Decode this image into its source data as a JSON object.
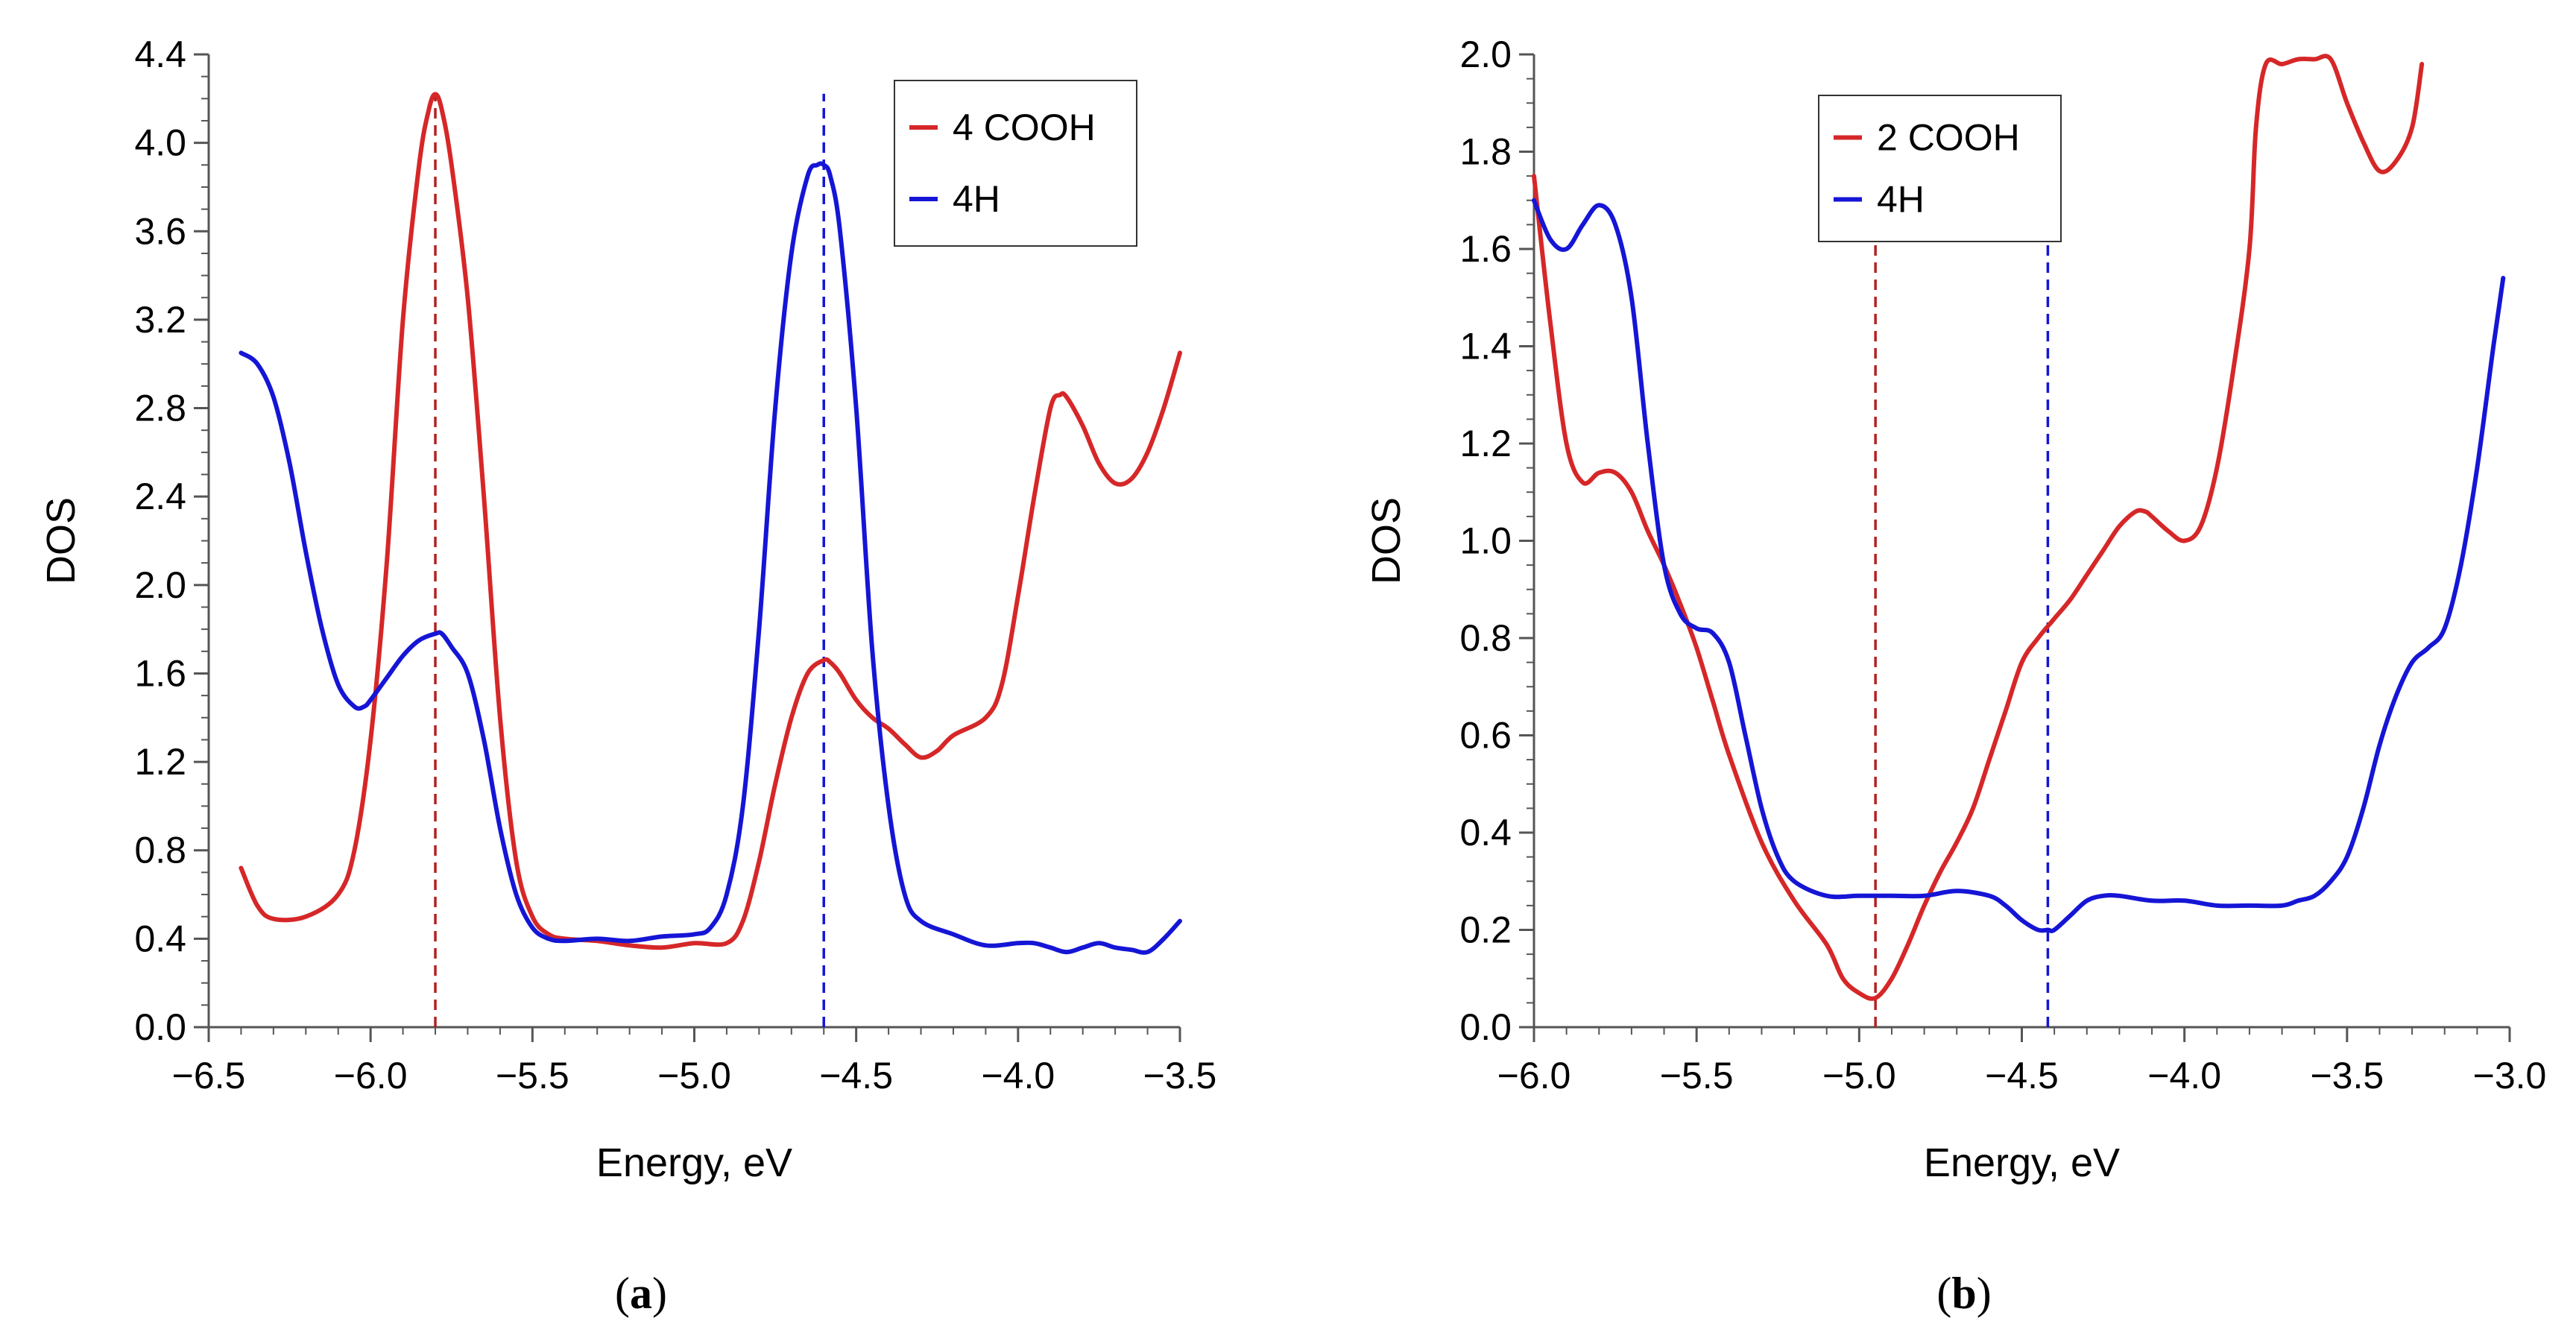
{
  "chart_data": [
    {
      "type": "line",
      "panel_label": "a",
      "xlabel": "Energy, eV",
      "ylabel": "DOS",
      "xlim": [
        -6.5,
        -3.5
      ],
      "ylim": [
        0.0,
        4.4
      ],
      "x_ticks": [
        -6.5,
        -6.0,
        -5.5,
        -5.0,
        -4.5,
        -4.0,
        -3.5
      ],
      "x_tick_labels": [
        "−6.5",
        "−6.0",
        "−5.5",
        "−5.0",
        "−4.5",
        "−4.0",
        "−3.5"
      ],
      "y_ticks": [
        0.0,
        0.4,
        0.8,
        1.2,
        1.6,
        2.0,
        2.4,
        2.8,
        3.2,
        3.6,
        4.0,
        4.4
      ],
      "y_tick_labels": [
        "0.0",
        "0.4",
        "0.8",
        "1.2",
        "1.6",
        "2.0",
        "2.4",
        "2.8",
        "3.2",
        "3.6",
        "4.0",
        "4.4"
      ],
      "legend_position": "top-right",
      "series": [
        {
          "name": "4 COOH",
          "color": "#d62728",
          "x": [
            -6.4,
            -6.35,
            -6.3,
            -6.2,
            -6.1,
            -6.05,
            -6.0,
            -5.95,
            -5.9,
            -5.85,
            -5.82,
            -5.8,
            -5.78,
            -5.75,
            -5.7,
            -5.65,
            -5.6,
            -5.55,
            -5.5,
            -5.45,
            -5.4,
            -5.3,
            -5.2,
            -5.1,
            -5.0,
            -4.9,
            -4.85,
            -4.8,
            -4.75,
            -4.7,
            -4.65,
            -4.6,
            -4.58,
            -4.55,
            -4.5,
            -4.45,
            -4.4,
            -4.35,
            -4.3,
            -4.25,
            -4.2,
            -4.1,
            -4.05,
            -4.0,
            -3.95,
            -3.9,
            -3.87,
            -3.85,
            -3.8,
            -3.75,
            -3.7,
            -3.65,
            -3.6,
            -3.55,
            -3.5
          ],
          "y": [
            0.72,
            0.55,
            0.49,
            0.5,
            0.6,
            0.8,
            1.3,
            2.1,
            3.2,
            3.9,
            4.15,
            4.22,
            4.15,
            3.9,
            3.3,
            2.4,
            1.4,
            0.75,
            0.5,
            0.42,
            0.4,
            0.39,
            0.37,
            0.36,
            0.38,
            0.38,
            0.48,
            0.75,
            1.1,
            1.4,
            1.6,
            1.66,
            1.65,
            1.6,
            1.48,
            1.4,
            1.35,
            1.28,
            1.22,
            1.25,
            1.32,
            1.4,
            1.55,
            1.95,
            2.4,
            2.8,
            2.86,
            2.85,
            2.72,
            2.55,
            2.46,
            2.48,
            2.6,
            2.8,
            3.05
          ]
        },
        {
          "name": "4H",
          "color": "#1515d6",
          "x": [
            -6.4,
            -6.35,
            -6.3,
            -6.25,
            -6.2,
            -6.15,
            -6.1,
            -6.05,
            -6.02,
            -6.0,
            -5.95,
            -5.9,
            -5.85,
            -5.8,
            -5.78,
            -5.75,
            -5.7,
            -5.65,
            -5.6,
            -5.55,
            -5.5,
            -5.45,
            -5.4,
            -5.3,
            -5.2,
            -5.1,
            -5.0,
            -4.95,
            -4.9,
            -4.85,
            -4.8,
            -4.75,
            -4.7,
            -4.65,
            -4.62,
            -4.6,
            -4.58,
            -4.55,
            -4.5,
            -4.45,
            -4.4,
            -4.35,
            -4.3,
            -4.2,
            -4.1,
            -4.0,
            -3.95,
            -3.9,
            -3.85,
            -3.8,
            -3.75,
            -3.7,
            -3.65,
            -3.6,
            -3.55,
            -3.5
          ],
          "y": [
            3.05,
            3.0,
            2.85,
            2.55,
            2.15,
            1.8,
            1.55,
            1.45,
            1.45,
            1.48,
            1.58,
            1.68,
            1.75,
            1.78,
            1.78,
            1.72,
            1.6,
            1.3,
            0.9,
            0.6,
            0.45,
            0.4,
            0.39,
            0.4,
            0.39,
            0.41,
            0.42,
            0.45,
            0.6,
            1.0,
            1.8,
            2.8,
            3.5,
            3.85,
            3.9,
            3.9,
            3.85,
            3.6,
            2.8,
            1.7,
            1.0,
            0.6,
            0.48,
            0.42,
            0.37,
            0.38,
            0.38,
            0.36,
            0.34,
            0.36,
            0.38,
            0.36,
            0.35,
            0.34,
            0.4,
            0.48
          ]
        }
      ],
      "reference_lines": [
        {
          "x": -5.8,
          "color": "#b22222"
        },
        {
          "x": -4.6,
          "color": "#1515d6"
        }
      ]
    },
    {
      "type": "line",
      "panel_label": "b",
      "xlabel": "Energy, eV",
      "ylabel": "DOS",
      "xlim": [
        -6.0,
        -3.0
      ],
      "ylim": [
        0.0,
        2.0
      ],
      "x_ticks": [
        -6.0,
        -5.5,
        -5.0,
        -4.5,
        -4.0,
        -3.5,
        -3.0
      ],
      "x_tick_labels": [
        "−6.0",
        "−5.5",
        "−5.0",
        "−4.5",
        "−4.0",
        "−3.5",
        "−3.0"
      ],
      "y_ticks": [
        0.0,
        0.2,
        0.4,
        0.6,
        0.8,
        1.0,
        1.2,
        1.4,
        1.6,
        1.8,
        2.0
      ],
      "y_tick_labels": [
        "0.0",
        "0.2",
        "0.4",
        "0.6",
        "0.8",
        "1.0",
        "1.2",
        "1.4",
        "1.6",
        "1.8",
        "2.0"
      ],
      "legend_position": "top-center",
      "series": [
        {
          "name": "2 COOH",
          "color": "#d62728",
          "x": [
            -6.0,
            -5.95,
            -5.9,
            -5.85,
            -5.8,
            -5.75,
            -5.7,
            -5.65,
            -5.6,
            -5.55,
            -5.5,
            -5.45,
            -5.4,
            -5.3,
            -5.2,
            -5.1,
            -5.05,
            -5.0,
            -4.95,
            -4.9,
            -4.85,
            -4.8,
            -4.75,
            -4.7,
            -4.65,
            -4.6,
            -4.55,
            -4.5,
            -4.45,
            -4.4,
            -4.35,
            -4.3,
            -4.25,
            -4.2,
            -4.15,
            -4.12,
            -4.1,
            -4.05,
            -4.0,
            -3.95,
            -3.9,
            -3.85,
            -3.8,
            -3.78,
            -3.75,
            -3.7,
            -3.65,
            -3.6,
            -3.55,
            -3.5,
            -3.45,
            -3.4,
            -3.35,
            -3.3,
            -3.27
          ],
          "y": [
            1.75,
            1.45,
            1.2,
            1.12,
            1.14,
            1.14,
            1.1,
            1.02,
            0.95,
            0.87,
            0.78,
            0.67,
            0.56,
            0.38,
            0.26,
            0.17,
            0.1,
            0.07,
            0.06,
            0.1,
            0.17,
            0.25,
            0.32,
            0.38,
            0.45,
            0.55,
            0.65,
            0.75,
            0.8,
            0.84,
            0.88,
            0.93,
            0.98,
            1.03,
            1.06,
            1.06,
            1.05,
            1.02,
            1.0,
            1.03,
            1.15,
            1.35,
            1.6,
            1.85,
            1.98,
            1.98,
            1.99,
            1.99,
            1.99,
            1.9,
            1.82,
            1.76,
            1.78,
            1.85,
            1.98
          ]
        },
        {
          "name": "4H",
          "color": "#1515d6",
          "x": [
            -6.0,
            -5.95,
            -5.9,
            -5.85,
            -5.8,
            -5.75,
            -5.7,
            -5.65,
            -5.6,
            -5.55,
            -5.5,
            -5.45,
            -5.4,
            -5.35,
            -5.3,
            -5.25,
            -5.2,
            -5.1,
            -5.0,
            -4.9,
            -4.8,
            -4.7,
            -4.6,
            -4.55,
            -4.5,
            -4.45,
            -4.42,
            -4.4,
            -4.35,
            -4.3,
            -4.25,
            -4.2,
            -4.1,
            -4.0,
            -3.9,
            -3.8,
            -3.7,
            -3.65,
            -3.6,
            -3.55,
            -3.5,
            -3.45,
            -3.4,
            -3.35,
            -3.3,
            -3.25,
            -3.2,
            -3.15,
            -3.1,
            -3.05,
            -3.02
          ],
          "y": [
            1.7,
            1.62,
            1.6,
            1.65,
            1.69,
            1.65,
            1.5,
            1.2,
            0.95,
            0.85,
            0.82,
            0.81,
            0.75,
            0.6,
            0.45,
            0.35,
            0.3,
            0.27,
            0.27,
            0.27,
            0.27,
            0.28,
            0.27,
            0.25,
            0.22,
            0.2,
            0.2,
            0.2,
            0.23,
            0.26,
            0.27,
            0.27,
            0.26,
            0.26,
            0.25,
            0.25,
            0.25,
            0.26,
            0.27,
            0.3,
            0.35,
            0.45,
            0.58,
            0.68,
            0.75,
            0.78,
            0.82,
            0.95,
            1.15,
            1.4,
            1.54
          ]
        }
      ],
      "reference_lines": [
        {
          "x": -4.95,
          "color": "#b22222"
        },
        {
          "x": -4.42,
          "color": "#1515d6"
        }
      ]
    }
  ]
}
